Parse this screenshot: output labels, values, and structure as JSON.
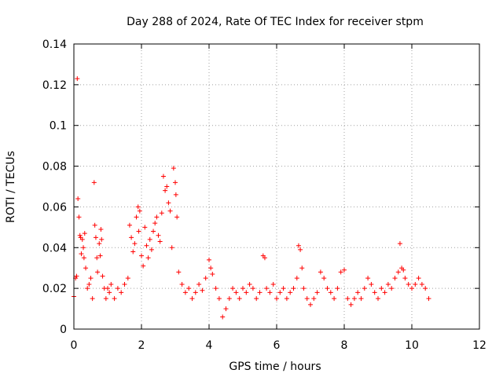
{
  "chart_data": {
    "type": "scatter",
    "title": "Day 288 of 2024, Rate Of TEC Index for receiver stpm",
    "xlabel": "GPS time / hours",
    "ylabel": "ROTI / TECUs",
    "xlim": [
      0,
      12
    ],
    "ylim": [
      0,
      0.14
    ],
    "xticks": [
      0,
      2,
      4,
      6,
      8,
      10,
      12
    ],
    "xtick_labels": [
      "0",
      "2",
      "4",
      "6",
      "8",
      "10",
      "12"
    ],
    "yticks": [
      0,
      0.02,
      0.04,
      0.06,
      0.08,
      0.1,
      0.12,
      0.14
    ],
    "ytick_labels": [
      "0",
      "0.02",
      "0.04",
      "0.06",
      "0.08",
      "0.1",
      "0.12",
      "0.14"
    ],
    "grid": true,
    "marker": "+",
    "color": "#ff0000",
    "series": [
      {
        "name": "ROTI",
        "points": [
          [
            0.0,
            0.016
          ],
          [
            0.05,
            0.025
          ],
          [
            0.08,
            0.026
          ],
          [
            0.1,
            0.123
          ],
          [
            0.12,
            0.064
          ],
          [
            0.15,
            0.055
          ],
          [
            0.18,
            0.046
          ],
          [
            0.2,
            0.045
          ],
          [
            0.22,
            0.037
          ],
          [
            0.25,
            0.044
          ],
          [
            0.28,
            0.04
          ],
          [
            0.3,
            0.035
          ],
          [
            0.32,
            0.047
          ],
          [
            0.35,
            0.03
          ],
          [
            0.4,
            0.02
          ],
          [
            0.45,
            0.022
          ],
          [
            0.5,
            0.025
          ],
          [
            0.55,
            0.015
          ],
          [
            0.6,
            0.072
          ],
          [
            0.62,
            0.051
          ],
          [
            0.65,
            0.045
          ],
          [
            0.68,
            0.035
          ],
          [
            0.7,
            0.028
          ],
          [
            0.75,
            0.042
          ],
          [
            0.78,
            0.036
          ],
          [
            0.8,
            0.049
          ],
          [
            0.82,
            0.044
          ],
          [
            0.85,
            0.026
          ],
          [
            0.9,
            0.02
          ],
          [
            0.95,
            0.015
          ],
          [
            1.0,
            0.02
          ],
          [
            1.05,
            0.018
          ],
          [
            1.1,
            0.022
          ],
          [
            1.2,
            0.015
          ],
          [
            1.3,
            0.02
          ],
          [
            1.4,
            0.018
          ],
          [
            1.5,
            0.022
          ],
          [
            1.6,
            0.025
          ],
          [
            1.65,
            0.051
          ],
          [
            1.7,
            0.045
          ],
          [
            1.75,
            0.038
          ],
          [
            1.8,
            0.042
          ],
          [
            1.85,
            0.055
          ],
          [
            1.9,
            0.06
          ],
          [
            1.92,
            0.048
          ],
          [
            1.95,
            0.058
          ],
          [
            2.0,
            0.036
          ],
          [
            2.05,
            0.031
          ],
          [
            2.1,
            0.05
          ],
          [
            2.15,
            0.041
          ],
          [
            2.2,
            0.035
          ],
          [
            2.25,
            0.044
          ],
          [
            2.3,
            0.039
          ],
          [
            2.35,
            0.048
          ],
          [
            2.4,
            0.052
          ],
          [
            2.45,
            0.055
          ],
          [
            2.5,
            0.046
          ],
          [
            2.55,
            0.043
          ],
          [
            2.6,
            0.057
          ],
          [
            2.65,
            0.075
          ],
          [
            2.7,
            0.068
          ],
          [
            2.75,
            0.07
          ],
          [
            2.8,
            0.062
          ],
          [
            2.85,
            0.058
          ],
          [
            2.9,
            0.04
          ],
          [
            2.95,
            0.079
          ],
          [
            3.0,
            0.072
          ],
          [
            3.02,
            0.066
          ],
          [
            3.05,
            0.055
          ],
          [
            3.1,
            0.028
          ],
          [
            3.2,
            0.022
          ],
          [
            3.3,
            0.018
          ],
          [
            3.4,
            0.02
          ],
          [
            3.5,
            0.015
          ],
          [
            3.6,
            0.018
          ],
          [
            3.7,
            0.022
          ],
          [
            3.8,
            0.019
          ],
          [
            3.9,
            0.025
          ],
          [
            4.0,
            0.034
          ],
          [
            4.05,
            0.03
          ],
          [
            4.1,
            0.027
          ],
          [
            4.2,
            0.02
          ],
          [
            4.3,
            0.015
          ],
          [
            4.4,
            0.006
          ],
          [
            4.5,
            0.01
          ],
          [
            4.6,
            0.015
          ],
          [
            4.7,
            0.02
          ],
          [
            4.8,
            0.018
          ],
          [
            4.9,
            0.015
          ],
          [
            5.0,
            0.02
          ],
          [
            5.1,
            0.018
          ],
          [
            5.2,
            0.022
          ],
          [
            5.3,
            0.02
          ],
          [
            5.4,
            0.015
          ],
          [
            5.5,
            0.018
          ],
          [
            5.6,
            0.036
          ],
          [
            5.65,
            0.035
          ],
          [
            5.7,
            0.02
          ],
          [
            5.8,
            0.018
          ],
          [
            5.9,
            0.022
          ],
          [
            6.0,
            0.015
          ],
          [
            6.1,
            0.018
          ],
          [
            6.2,
            0.02
          ],
          [
            6.3,
            0.015
          ],
          [
            6.4,
            0.018
          ],
          [
            6.5,
            0.02
          ],
          [
            6.6,
            0.025
          ],
          [
            6.65,
            0.041
          ],
          [
            6.7,
            0.039
          ],
          [
            6.75,
            0.03
          ],
          [
            6.8,
            0.02
          ],
          [
            6.9,
            0.015
          ],
          [
            7.0,
            0.012
          ],
          [
            7.1,
            0.015
          ],
          [
            7.2,
            0.018
          ],
          [
            7.3,
            0.028
          ],
          [
            7.4,
            0.025
          ],
          [
            7.5,
            0.02
          ],
          [
            7.6,
            0.018
          ],
          [
            7.7,
            0.015
          ],
          [
            7.8,
            0.02
          ],
          [
            7.9,
            0.028
          ],
          [
            8.0,
            0.029
          ],
          [
            8.1,
            0.015
          ],
          [
            8.2,
            0.012
          ],
          [
            8.3,
            0.015
          ],
          [
            8.4,
            0.018
          ],
          [
            8.5,
            0.015
          ],
          [
            8.6,
            0.02
          ],
          [
            8.7,
            0.025
          ],
          [
            8.8,
            0.022
          ],
          [
            8.9,
            0.018
          ],
          [
            9.0,
            0.015
          ],
          [
            9.1,
            0.02
          ],
          [
            9.2,
            0.018
          ],
          [
            9.3,
            0.022
          ],
          [
            9.4,
            0.02
          ],
          [
            9.5,
            0.025
          ],
          [
            9.6,
            0.028
          ],
          [
            9.65,
            0.042
          ],
          [
            9.7,
            0.03
          ],
          [
            9.75,
            0.029
          ],
          [
            9.8,
            0.025
          ],
          [
            9.9,
            0.022
          ],
          [
            10.0,
            0.02
          ],
          [
            10.1,
            0.022
          ],
          [
            10.2,
            0.025
          ],
          [
            10.3,
            0.022
          ],
          [
            10.4,
            0.02
          ],
          [
            10.5,
            0.015
          ]
        ]
      }
    ]
  }
}
